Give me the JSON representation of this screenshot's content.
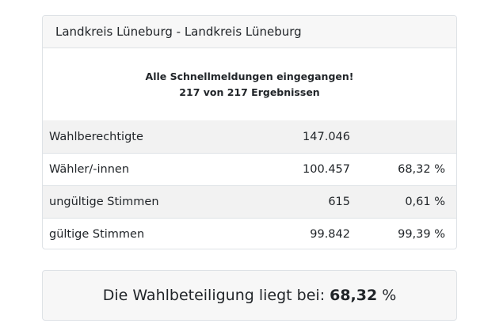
{
  "card": {
    "title": "Landkreis Lüneburg - Landkreis Lüneburg",
    "notice_line1": "Alle Schnellmeldungen eingegangen!",
    "notice_line2": "217 von 217 Ergebnissen"
  },
  "table": {
    "rows": [
      {
        "label": "Wahlberechtigte",
        "count": "147.046",
        "percent": ""
      },
      {
        "label": "Wähler/-innen",
        "count": "100.457",
        "percent": "68,32 %"
      },
      {
        "label": "ungültige Stimmen",
        "count": "615",
        "percent": "0,61 %"
      },
      {
        "label": "gültige Stimmen",
        "count": "99.842",
        "percent": "99,39 %"
      }
    ]
  },
  "summary": {
    "prefix": "Die Wahlbeteiligung liegt bei:",
    "value": "68,32",
    "unit": "%"
  },
  "colors": {
    "header_bg": "#f7f7f7",
    "shaded_row_bg": "#f2f2f2",
    "border": "#dee2e6",
    "text": "#212529"
  }
}
